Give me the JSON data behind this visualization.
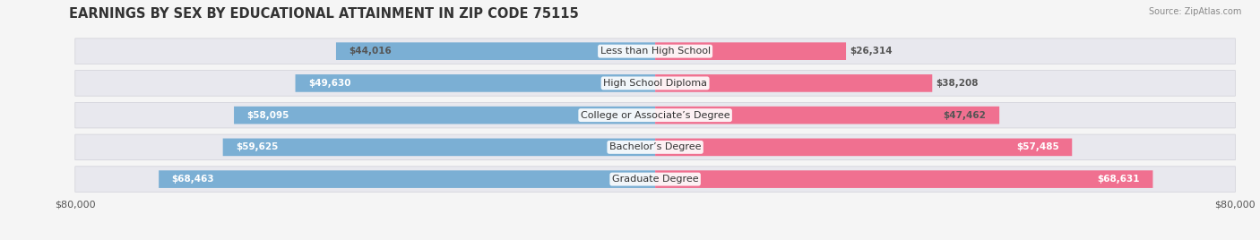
{
  "title": "EARNINGS BY SEX BY EDUCATIONAL ATTAINMENT IN ZIP CODE 75115",
  "source": "Source: ZipAtlas.com",
  "categories": [
    "Less than High School",
    "High School Diploma",
    "College or Associate’s Degree",
    "Bachelor’s Degree",
    "Graduate Degree"
  ],
  "male_values": [
    44016,
    49630,
    58095,
    59625,
    68463
  ],
  "female_values": [
    26314,
    38208,
    47462,
    57485,
    68631
  ],
  "male_label_colors": [
    "#555555",
    "#ffffff",
    "#ffffff",
    "#ffffff",
    "#ffffff"
  ],
  "female_label_colors": [
    "#555555",
    "#555555",
    "#555555",
    "#ffffff",
    "#ffffff"
  ],
  "male_color": "#7bafd4",
  "female_color": "#f07090",
  "max_value": 80000,
  "background_color": "#f5f5f5",
  "row_bg_color": "#e8e8ee",
  "title_fontsize": 10.5,
  "label_fontsize": 8,
  "value_fontsize": 7.5,
  "tick_fontsize": 8
}
